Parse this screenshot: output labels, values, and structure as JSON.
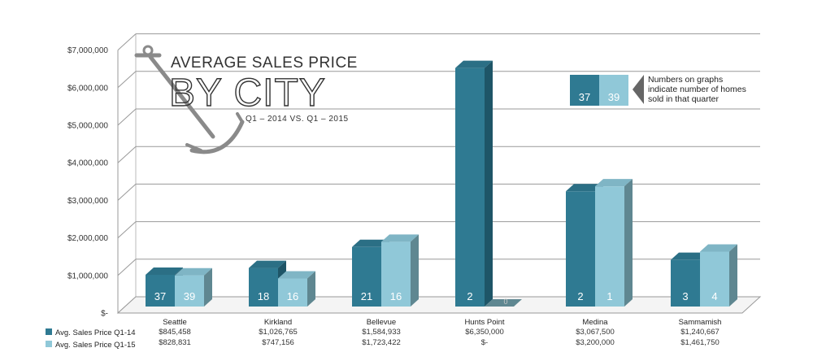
{
  "chart_data": {
    "type": "bar",
    "title": "AVERAGE SALES PRICE",
    "title_big": "BY CITY",
    "subtitle": "Q1 – 2014 VS. Q1 – 2015",
    "ylim": [
      0,
      7000000
    ],
    "yticks": [
      {
        "value": 0,
        "label": "$-"
      },
      {
        "value": 1000000,
        "label": "$1,000,000"
      },
      {
        "value": 2000000,
        "label": "$2,000,000"
      },
      {
        "value": 3000000,
        "label": "$3,000,000"
      },
      {
        "value": 4000000,
        "label": "$4,000,000"
      },
      {
        "value": 5000000,
        "label": "$5,000,000"
      },
      {
        "value": 6000000,
        "label": "$6,000,000"
      },
      {
        "value": 7000000,
        "label": "$7,000,000"
      }
    ],
    "grid": true,
    "categories": [
      "Seattle",
      "Kirkland",
      "Bellevue",
      "Hunts Point",
      "Medina",
      "Sammamish"
    ],
    "series": [
      {
        "name": "Avg. Sales Price Q1-14",
        "color": "#2f7a92",
        "values": [
          845458,
          1026765,
          1584933,
          6350000,
          3067500,
          1240667
        ],
        "labels": [
          "$845,458",
          "$1,026,765",
          "$1,584,933",
          "$6,350,000",
          "$3,067,500",
          "$1,240,667"
        ],
        "counts": [
          "37",
          "18",
          "21",
          "2",
          "2",
          "3"
        ]
      },
      {
        "name": "Avg. Sales Price Q1-15",
        "color": "#90c8d8",
        "values": [
          828831,
          747156,
          1723422,
          0,
          3200000,
          1461750
        ],
        "labels": [
          "$828,831",
          "$747,156",
          "$1,723,422",
          "$-",
          "$3,200,000",
          "$1,461,750"
        ],
        "counts": [
          "39",
          "16",
          "16",
          "0",
          "1",
          "4"
        ]
      }
    ],
    "note": {
      "lines": [
        "Numbers on graphs",
        "indicate number of homes",
        "sold in that quarter"
      ],
      "sample_counts": [
        "37",
        "39"
      ]
    },
    "legend_placement": "bottom-left"
  }
}
